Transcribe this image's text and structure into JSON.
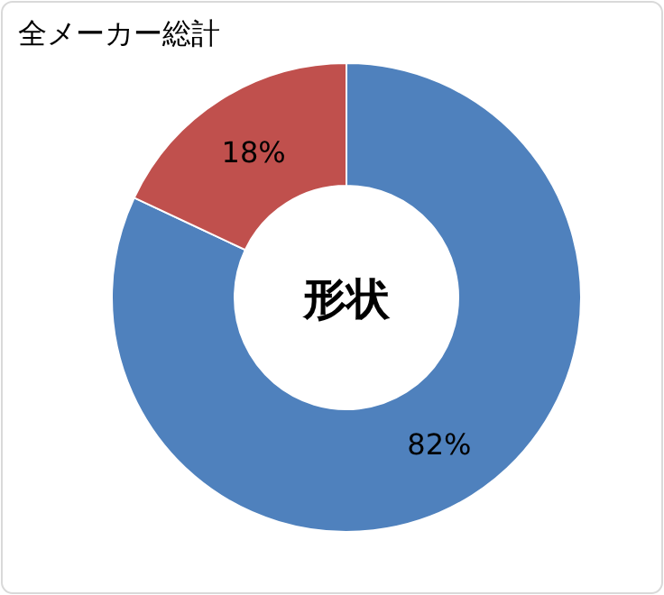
{
  "chart_data": {
    "type": "donut",
    "title": "全メーカー総計",
    "annotations": [
      "形状"
    ],
    "categories": [
      null,
      null
    ],
    "values": [
      82,
      18
    ],
    "colors": [
      "#4f81bd",
      "#c0504d"
    ],
    "value_labels": [
      "82%",
      "18%"
    ]
  }
}
